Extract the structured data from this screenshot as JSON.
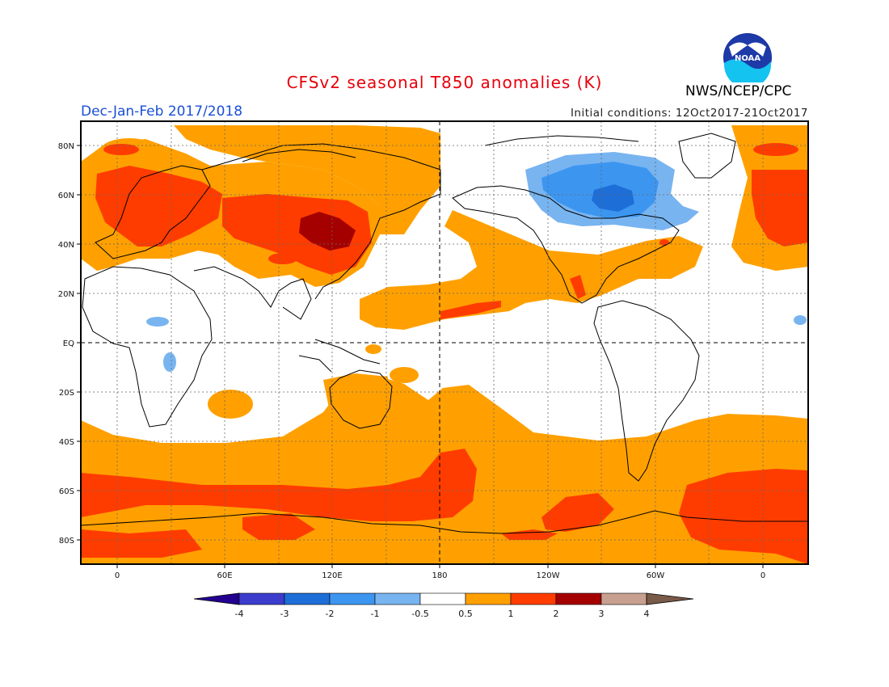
{
  "header": {
    "title": "CFSv2 seasonal T850 anomalies (K)",
    "period": "Dec-Jan-Feb 2017/2018",
    "initial_conditions": "Initial conditions: 12Oct2017-21Oct2017",
    "agency": "NWS/NCEP/CPC",
    "logo_text": "NOAA"
  },
  "map": {
    "projection": "cylindrical equidistant",
    "variable": "T850 anomaly",
    "units": "K",
    "lon_ticks": [
      "0",
      "60E",
      "120E",
      "180",
      "120W",
      "60W",
      "0"
    ],
    "lat_ticks": [
      "80N",
      "60N",
      "40N",
      "20N",
      "EQ",
      "20S",
      "40S",
      "60S",
      "80S"
    ],
    "grid": "dotted",
    "colors": {
      "lt_neg4": "#240090",
      "neg4_neg3": "#3c3ccd",
      "neg3_neg2": "#1e6ed8",
      "neg2_neg1": "#3c96f0",
      "neg1_neg05": "#78b4f0",
      "neutral": "#ffffff",
      "pos05_1": "#ffa000",
      "pos1_2": "#ff3c00",
      "pos2_3": "#a50000",
      "pos3_4": "#c8a090",
      "gt4": "#7a5a48"
    }
  },
  "colorbar": {
    "labels": [
      "-4",
      "-3",
      "-2",
      "-1",
      "-0.5",
      "0.5",
      "1",
      "2",
      "3",
      "4"
    ],
    "colors": [
      "#3c3ccd",
      "#1e6ed8",
      "#3c96f0",
      "#78b4f0",
      "#ffffff",
      "#ffa000",
      "#ff3c00",
      "#a50000",
      "#c8a090"
    ],
    "left_arrow_color": "#240090",
    "right_arrow_color": "#7a5a48"
  }
}
